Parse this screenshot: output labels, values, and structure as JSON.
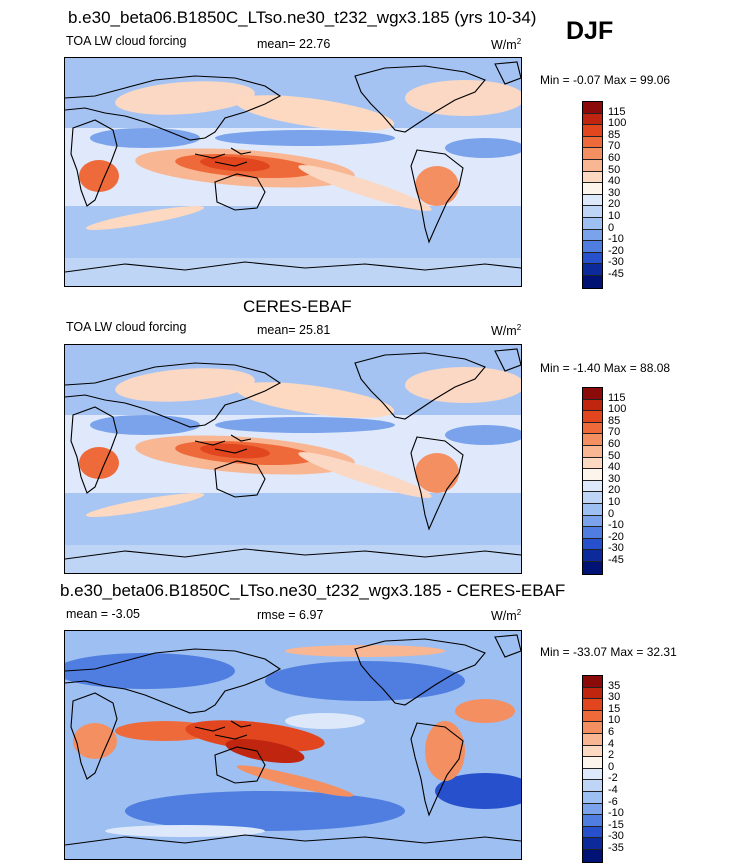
{
  "season": "DJF",
  "panels": [
    {
      "title": "b.e30_beta06.B1850C_LTso.ne30_t232_wgx3.185 (yrs 10-34)",
      "left_label": "TOA LW cloud forcing",
      "center_label": "mean=  22.76",
      "units": "W/m",
      "units_sup": "2",
      "minmax": "Min =  -0.07 Max =  99.06",
      "levels": [
        "115",
        "100",
        "85",
        "70",
        "60",
        "50",
        "40",
        "30",
        "20",
        "10",
        "0",
        "-10",
        "-20",
        "-30",
        "-45"
      ],
      "colors": [
        "#8b0a0a",
        "#c0260f",
        "#e2461f",
        "#ef6a3a",
        "#f48f62",
        "#f8b693",
        "#fcd9c0",
        "#fdf4ec",
        "#dde9fb",
        "#bed5f6",
        "#9ebff1",
        "#7aa3eb",
        "#4f7ee0",
        "#2750cc",
        "#0c2a99",
        "#001374"
      ]
    },
    {
      "title": "CERES-EBAF",
      "left_label": "TOA LW cloud forcing",
      "center_label": "mean=  25.81",
      "units": "W/m",
      "units_sup": "2",
      "minmax": "Min =  -1.40 Max =  88.08",
      "levels": [
        "115",
        "100",
        "85",
        "70",
        "60",
        "50",
        "40",
        "30",
        "20",
        "10",
        "0",
        "-10",
        "-20",
        "-30",
        "-45"
      ],
      "colors": [
        "#8b0a0a",
        "#c0260f",
        "#e2461f",
        "#ef6a3a",
        "#f48f62",
        "#f8b693",
        "#fcd9c0",
        "#fdf4ec",
        "#dde9fb",
        "#bed5f6",
        "#9ebff1",
        "#7aa3eb",
        "#4f7ee0",
        "#2750cc",
        "#0c2a99",
        "#001374"
      ]
    },
    {
      "title": "b.e30_beta06.B1850C_LTso.ne30_t232_wgx3.185 - CERES-EBAF",
      "left_label": "mean =  -3.05",
      "center_label": "rmse =   6.97",
      "units": "W/m",
      "units_sup": "2",
      "minmax": "Min = -33.07 Max =  32.31",
      "levels": [
        "35",
        "30",
        "15",
        "10",
        "6",
        "4",
        "2",
        "0",
        "-2",
        "-4",
        "-6",
        "-10",
        "-15",
        "-30",
        "-35"
      ],
      "colors": [
        "#8b0a0a",
        "#c0260f",
        "#e2461f",
        "#ef6a3a",
        "#f48f62",
        "#f8b693",
        "#fcd9c0",
        "#fdf4ec",
        "#dde9fb",
        "#bed5f6",
        "#9ebff1",
        "#7aa3eb",
        "#4f7ee0",
        "#2750cc",
        "#0c2a99",
        "#001374"
      ]
    }
  ]
}
